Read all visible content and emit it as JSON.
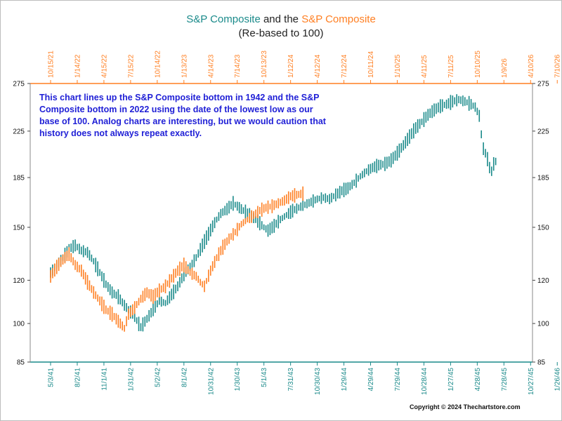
{
  "chart_data": {
    "type": "line",
    "title_parts": [
      "S&P Composite",
      " and the ",
      "S&P Composite"
    ],
    "subtitle": "(Re-based to 100)",
    "y_scale": "log",
    "ylim": [
      85,
      275
    ],
    "y_ticks": [
      85,
      100,
      120,
      150,
      185,
      225,
      275
    ],
    "bottom_x_ticks": [
      "5/3/41",
      "8/2/41",
      "11/1/41",
      "1/31/42",
      "5/2/42",
      "8/1/42",
      "10/31/42",
      "1/30/43",
      "5/1/43",
      "7/31/43",
      "10/30/43",
      "1/29/44",
      "4/29/44",
      "7/29/44",
      "10/28/44",
      "1/27/45",
      "4/28/45",
      "7/28/45",
      "10/27/45",
      "1/26/46",
      "4/27/46",
      "7/27/46",
      "10/26/46"
    ],
    "top_x_ticks": [
      "10/15/21",
      "1/14/22",
      "4/15/22",
      "7/15/22",
      "10/14/22",
      "1/13/23",
      "4/14/23",
      "7/14/23",
      "10/13/23",
      "1/12/24",
      "4/12/24",
      "7/12/24",
      "10/11/24",
      "1/10/25",
      "4/11/25",
      "7/11/25",
      "10/10/25",
      "1/9/26",
      "4/10/26",
      "7/10/26",
      "10/9/26",
      "1/8/27",
      "4/9/27"
    ],
    "x_tick_step_weeks": 13,
    "series": [
      {
        "color": "#1a8a8a",
        "axis": "bottom",
        "points_weeks": [
          [
            0,
            124
          ],
          [
            3,
            128
          ],
          [
            6,
            132
          ],
          [
            9,
            137
          ],
          [
            12,
            139
          ],
          [
            15,
            136
          ],
          [
            18,
            135
          ],
          [
            21,
            130
          ],
          [
            24,
            124
          ],
          [
            27,
            118
          ],
          [
            30,
            114
          ],
          [
            33,
            112
          ],
          [
            36,
            108
          ],
          [
            40,
            104
          ],
          [
            44,
            98.5
          ],
          [
            47,
            102
          ],
          [
            50,
            106
          ],
          [
            53,
            110
          ],
          [
            56,
            109
          ],
          [
            59,
            113
          ],
          [
            62,
            117
          ],
          [
            65,
            123
          ],
          [
            68,
            127
          ],
          [
            71,
            132
          ],
          [
            74,
            139
          ],
          [
            77,
            146
          ],
          [
            80,
            153
          ],
          [
            83,
            159
          ],
          [
            86,
            162
          ],
          [
            89,
            166
          ],
          [
            92,
            163
          ],
          [
            95,
            160
          ],
          [
            98,
            157
          ],
          [
            101,
            154
          ],
          [
            104,
            150
          ],
          [
            106,
            148
          ],
          [
            109,
            151
          ],
          [
            112,
            155
          ],
          [
            115,
            158
          ],
          [
            118,
            161
          ],
          [
            121,
            163
          ],
          [
            124,
            165
          ],
          [
            127,
            167
          ],
          [
            130,
            169
          ],
          [
            133,
            170
          ],
          [
            136,
            169
          ],
          [
            139,
            172
          ],
          [
            142,
            175
          ],
          [
            145,
            177
          ],
          [
            148,
            181
          ],
          [
            151,
            186
          ],
          [
            154,
            190
          ],
          [
            157,
            193
          ],
          [
            160,
            195
          ],
          [
            163,
            196
          ],
          [
            166,
            199
          ],
          [
            169,
            205
          ],
          [
            172,
            212
          ],
          [
            175,
            220
          ],
          [
            178,
            228
          ],
          [
            181,
            234
          ],
          [
            184,
            241
          ],
          [
            187,
            246
          ],
          [
            190,
            250
          ],
          [
            193,
            252
          ],
          [
            196,
            255
          ],
          [
            199,
            257
          ],
          [
            202,
            255
          ],
          [
            205,
            252
          ],
          [
            207,
            249
          ],
          [
            209,
            240
          ],
          [
            210,
            222
          ],
          [
            211,
            209
          ],
          [
            212,
            205
          ],
          [
            213,
            200
          ],
          [
            214,
            193
          ],
          [
            215,
            190
          ],
          [
            216,
            196
          ],
          [
            217,
            198
          ]
        ]
      },
      {
        "color": "#ff7f22",
        "axis": "top",
        "points_weeks": [
          [
            0,
            122
          ],
          [
            3,
            127
          ],
          [
            6,
            131
          ],
          [
            9,
            134
          ],
          [
            12,
            128
          ],
          [
            15,
            125
          ],
          [
            18,
            119
          ],
          [
            21,
            114
          ],
          [
            24,
            110
          ],
          [
            27,
            106
          ],
          [
            30,
            104
          ],
          [
            33,
            101
          ],
          [
            36,
            98
          ],
          [
            38,
            104
          ],
          [
            41,
            107
          ],
          [
            44,
            111
          ],
          [
            47,
            114
          ],
          [
            50,
            112
          ],
          [
            53,
            115
          ],
          [
            56,
            117
          ],
          [
            59,
            121
          ],
          [
            62,
            125
          ],
          [
            65,
            128
          ],
          [
            68,
            124
          ],
          [
            71,
            122
          ],
          [
            73,
            119
          ],
          [
            75,
            117
          ],
          [
            78,
            125
          ],
          [
            81,
            132
          ],
          [
            84,
            138
          ],
          [
            87,
            143
          ],
          [
            90,
            147
          ],
          [
            93,
            152
          ],
          [
            96,
            155
          ],
          [
            99,
            158
          ],
          [
            102,
            161
          ],
          [
            105,
            163
          ],
          [
            108,
            164
          ],
          [
            111,
            166
          ],
          [
            114,
            168
          ],
          [
            117,
            171
          ],
          [
            120,
            172
          ],
          [
            123,
            173
          ]
        ]
      }
    ]
  },
  "annotation_text": "This chart lines up the S&P Composite bottom in 1942 and the S&P Composite bottom in 2022 using the date of the lowest low as our base of 100.  Analog charts are interesting, but we would caution that history does not always repeat exactly.",
  "copyright": "Copyright © 2024 Thechartstore.com"
}
